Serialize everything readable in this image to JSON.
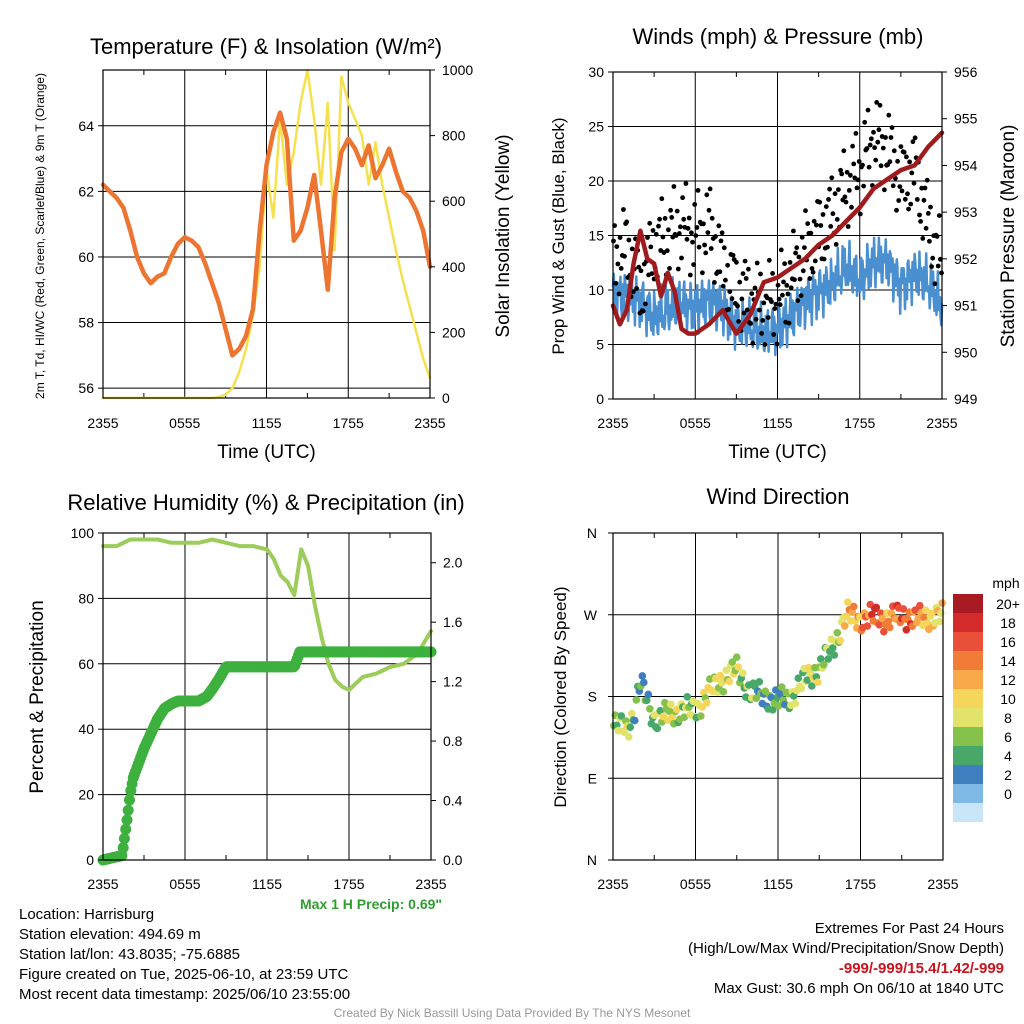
{
  "chart_data": [
    {
      "type": "line",
      "title": "Temperature (F) & Insolation (W/m²)",
      "xlabel": "Time (UTC)",
      "ylabel_left": "2m T, Td, HI/WC (Red, Green, Scarlet/Blue) & 9m T (Orange)",
      "ylabel_right": "Solar Insolation (Yellow)",
      "x_ticks": [
        "2355",
        "0555",
        "1155",
        "1755",
        "2355"
      ],
      "ylim_left": [
        55.7,
        65.7
      ],
      "ylim_right": [
        0,
        1000
      ],
      "y_ticks_left": [
        56,
        58,
        60,
        62,
        64
      ],
      "y_ticks_right": [
        0,
        200,
        400,
        600,
        800,
        1000
      ],
      "grid": true,
      "series": [
        {
          "name": "9m T",
          "axis": "left",
          "color": "#ec7631",
          "x_hours": [
            0,
            0.5,
            1,
            1.5,
            2,
            2.5,
            3,
            3.5,
            4,
            4.5,
            5,
            5.5,
            6,
            6.5,
            7,
            7.5,
            8,
            8.5,
            9,
            9.5,
            10,
            10.5,
            11,
            11.5,
            12,
            12.5,
            13,
            13.5,
            14,
            14.5,
            15,
            15.5,
            16,
            16.5,
            17,
            17.5,
            18,
            18.5,
            19,
            19.5,
            20,
            20.5,
            21,
            21.5,
            22,
            22.5,
            23,
            23.5,
            24
          ],
          "values": [
            62.2,
            62.0,
            61.8,
            61.5,
            60.8,
            60.0,
            59.5,
            59.2,
            59.4,
            59.5,
            60.0,
            60.4,
            60.6,
            60.5,
            60.3,
            59.8,
            59.2,
            58.6,
            57.8,
            57.0,
            57.2,
            57.6,
            58.4,
            60.8,
            62.8,
            63.8,
            64.4,
            63.6,
            60.5,
            60.8,
            61.5,
            62.5,
            60.8,
            59.0,
            61.8,
            63.2,
            63.6,
            63.3,
            62.8,
            63.4,
            62.4,
            62.8,
            63.3,
            62.6,
            62.0,
            61.8,
            61.4,
            60.8,
            59.7
          ]
        },
        {
          "name": "Solar Insolation",
          "axis": "right",
          "color": "#f5e14e",
          "x_hours": [
            0,
            1,
            2,
            3,
            4,
            5,
            6,
            7,
            8,
            8.5,
            9,
            9.5,
            10,
            10.5,
            11,
            11.5,
            12,
            12.5,
            13,
            13.5,
            14,
            14.5,
            15,
            15.5,
            16,
            16.5,
            17,
            17.5,
            18,
            18.5,
            19,
            19.5,
            20,
            20.5,
            21,
            21.5,
            22,
            22.5,
            23,
            23.5,
            24
          ],
          "values": [
            0,
            0,
            0,
            0,
            0,
            0,
            0,
            0,
            0,
            3,
            10,
            30,
            80,
            150,
            250,
            400,
            700,
            550,
            850,
            650,
            750,
            900,
            1000,
            850,
            650,
            900,
            450,
            980,
            900,
            850,
            800,
            650,
            780,
            650,
            550,
            450,
            360,
            280,
            200,
            120,
            60
          ]
        }
      ]
    },
    {
      "type": "scatter",
      "title": "Winds (mph) & Pressure (mb)",
      "xlabel": "Time (UTC)",
      "ylabel_left": "Prop Wind & Gust (Blue, Black)",
      "ylabel_right": "Station Pressure (Maroon)",
      "x_ticks": [
        "2355",
        "0555",
        "1155",
        "1755",
        "2355"
      ],
      "ylim_left": [
        0,
        30
      ],
      "ylim_right": [
        949,
        956
      ],
      "y_ticks_left": [
        0,
        5,
        10,
        15,
        20,
        25,
        30
      ],
      "y_ticks_right": [
        949,
        950,
        951,
        952,
        953,
        954,
        955,
        956
      ],
      "grid": true,
      "series": [
        {
          "name": "Prop Wind",
          "kind": "line",
          "axis": "left",
          "color": "#4a90d0",
          "x_hours": [
            0,
            1,
            2,
            3,
            4,
            5,
            6,
            7,
            8,
            9,
            10,
            11,
            12,
            13,
            14,
            15,
            16,
            17,
            18,
            19,
            20,
            21,
            22,
            23,
            24
          ],
          "values": [
            9.5,
            9.5,
            9.0,
            7.5,
            8.0,
            8.8,
            8.5,
            9.0,
            8.5,
            7.0,
            6.5,
            6.0,
            6.5,
            7.5,
            9.0,
            10.0,
            10.5,
            12.0,
            11.0,
            12.5,
            12.5,
            10.5,
            11.5,
            10.5,
            8.5
          ]
        },
        {
          "name": "Gust",
          "kind": "points",
          "axis": "left",
          "color": "#000000",
          "x_hours": [
            0,
            1,
            2,
            3,
            4,
            5,
            6,
            7,
            8,
            9,
            10,
            11,
            12,
            13,
            14,
            15,
            16,
            17,
            18,
            19,
            20,
            21,
            22,
            23,
            24
          ],
          "values": [
            13,
            14,
            10,
            14,
            15,
            16,
            15,
            16,
            12,
            10,
            9,
            8.5,
            9,
            11,
            13.5,
            15,
            17,
            19.5,
            21,
            24,
            23,
            20,
            21,
            16,
            12
          ]
        },
        {
          "name": "Station Pressure",
          "kind": "line",
          "axis": "right",
          "color": "#a01b1e",
          "x_hours": [
            0,
            0.5,
            1,
            1.5,
            2,
            2.5,
            3,
            3.5,
            4,
            4.5,
            5,
            5.5,
            6,
            7,
            8,
            9,
            10,
            11,
            12,
            13,
            14,
            15,
            16,
            17,
            18,
            19,
            20,
            21,
            22,
            23,
            24
          ],
          "values": [
            951.0,
            950.6,
            950.9,
            951.9,
            952.6,
            952.0,
            951.9,
            951.2,
            951.7,
            951.3,
            950.5,
            950.4,
            950.4,
            950.6,
            950.9,
            950.4,
            950.8,
            951.5,
            951.6,
            951.8,
            952.0,
            952.3,
            952.5,
            952.8,
            953.1,
            953.5,
            953.7,
            953.9,
            954.0,
            954.4,
            954.7
          ]
        }
      ]
    },
    {
      "type": "line",
      "title": "Relative Humidity (%) & Precipitation (in)",
      "ylabel_left": "Percent & Precipitation",
      "x_ticks": [
        "2355",
        "0555",
        "1155",
        "1755",
        "2355"
      ],
      "ylim_left": [
        0,
        100
      ],
      "ylim_right": [
        0,
        2.2
      ],
      "y_ticks_left": [
        0,
        20,
        40,
        60,
        80,
        100
      ],
      "y_ticks_right": [
        "0.0",
        "0.4",
        "0.8",
        "1.2",
        "1.6",
        "2.0"
      ],
      "grid": true,
      "series": [
        {
          "name": "Relative Humidity",
          "axis": "left",
          "color": "#9ccc5a",
          "x_hours": [
            0,
            1,
            2,
            3,
            4,
            5,
            6,
            7,
            8,
            9,
            10,
            11,
            12,
            12.5,
            13,
            13.5,
            14,
            14.5,
            15,
            15.5,
            16,
            16.5,
            17,
            17.5,
            18,
            19,
            20,
            21,
            22,
            23,
            24
          ],
          "values": [
            96,
            96,
            98,
            98,
            98,
            97,
            97,
            97,
            98,
            97,
            96,
            96,
            95,
            92,
            87,
            85,
            81,
            95,
            90,
            78,
            68,
            60,
            55,
            53,
            52,
            56,
            57,
            59,
            60,
            63,
            70
          ]
        },
        {
          "name": "Precipitation",
          "axis": "right",
          "color": "#3db03d",
          "x_hours": [
            0,
            1.4,
            1.8,
            2.0,
            2.2,
            2.6,
            3.0,
            3.5,
            4.0,
            4.5,
            5.0,
            5.5,
            6.0,
            7.0,
            7.6,
            8.0,
            8.5,
            9.0,
            10.0,
            11.0,
            12.0,
            14.0,
            14.4,
            15.0,
            16.0,
            18.0,
            20.0,
            22.0,
            24.0
          ],
          "values": [
            0,
            0.03,
            0.3,
            0.45,
            0.55,
            0.65,
            0.75,
            0.85,
            0.95,
            1.02,
            1.05,
            1.07,
            1.07,
            1.07,
            1.1,
            1.15,
            1.22,
            1.3,
            1.3,
            1.3,
            1.3,
            1.3,
            1.4,
            1.4,
            1.4,
            1.4,
            1.4,
            1.4,
            1.4
          ]
        }
      ]
    },
    {
      "type": "scatter",
      "title": "Wind Direction",
      "ylabel": "Direction (Colored By Speed)",
      "x_ticks": [
        "2355",
        "0555",
        "1155",
        "1755",
        "2355"
      ],
      "y_ticks": [
        "N",
        "E",
        "S",
        "W",
        "N"
      ],
      "ylim_degrees": [
        0,
        360
      ],
      "grid": true,
      "x_hours": [
        0,
        1,
        1.5,
        2,
        3,
        4,
        5,
        6,
        7,
        8,
        9,
        10,
        11,
        12,
        13,
        14,
        15,
        16,
        17,
        18,
        19,
        20,
        21,
        22,
        23,
        24
      ],
      "direction_deg": [
        148,
        145,
        160,
        195,
        155,
        160,
        165,
        165,
        185,
        200,
        210,
        185,
        180,
        175,
        180,
        200,
        210,
        235,
        270,
        265,
        268,
        265,
        270,
        265,
        268,
        268
      ],
      "speed_mph": [
        6,
        9,
        5,
        4,
        6,
        9,
        7,
        8,
        10,
        9,
        8,
        6,
        4,
        5,
        7,
        8,
        8,
        6,
        12,
        14,
        18,
        14,
        17,
        15,
        11,
        10
      ],
      "colorbar": {
        "title": "mph",
        "labels": [
          "20+",
          "18",
          "16",
          "14",
          "12",
          "10",
          "8",
          "6",
          "4",
          "2",
          "0"
        ],
        "colors": [
          "#a81b22",
          "#d32a2a",
          "#e8503a",
          "#f17c38",
          "#f9a84a",
          "#f4d75a",
          "#e2e36a",
          "#84c24c",
          "#48a86a",
          "#3f7fc0",
          "#7fb9e6",
          "#c8e6f8"
        ]
      }
    }
  ],
  "info": {
    "location": "Location: Harrisburg",
    "elevation": "Station elevation: 494.69 m",
    "latlon": "Station lat/lon: 43.8035; -75.6885",
    "created": "Figure created on Tue, 2025-06-10, at 23:59 UTC",
    "recent": "Most recent data timestamp: 2025/06/10 23:55:00"
  },
  "extremes": {
    "heading": "Extremes For Past 24 Hours",
    "subheading": "(High/Low/Max Wind/Precipitation/Snow Depth)",
    "values": "-999/-999/15.4/1.42/-999",
    "max_gust": "Max Gust: 30.6 mph On 06/10 at 1840 UTC"
  },
  "max_precip": "Max 1 H Precip: 0.69\"",
  "credit": "Created By Nick Bassill Using Data Provided By The NYS Mesonet"
}
